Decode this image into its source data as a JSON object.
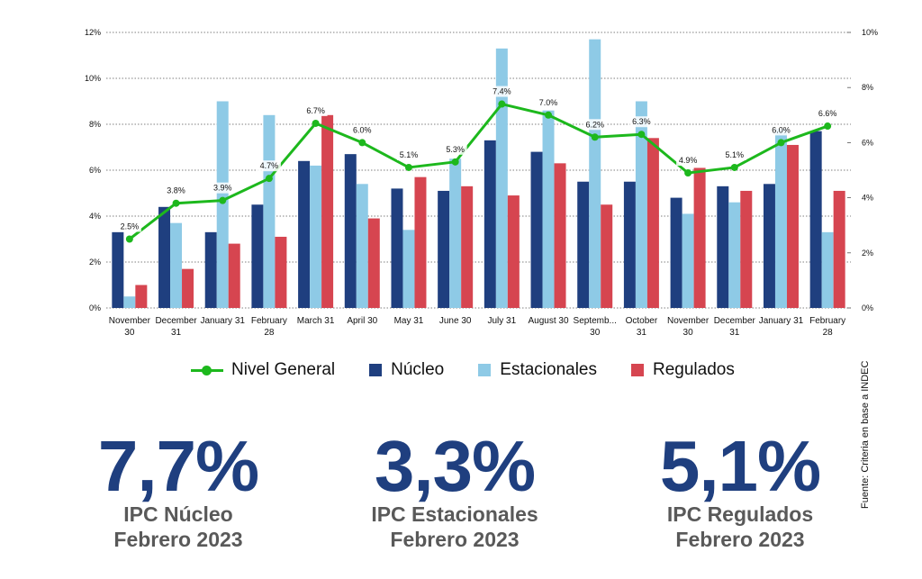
{
  "chart_data": {
    "type": "bar",
    "title": "",
    "categories": [
      [
        "November",
        "30"
      ],
      [
        "December",
        "31"
      ],
      [
        "January 31"
      ],
      [
        "February",
        "28"
      ],
      [
        "March 31"
      ],
      [
        "April 30"
      ],
      [
        "May 31"
      ],
      [
        "June 30"
      ],
      [
        "July 31"
      ],
      [
        "August 30"
      ],
      [
        "Septemb...",
        "30"
      ],
      [
        "October",
        "31"
      ],
      [
        "November",
        "30"
      ],
      [
        "December",
        "31"
      ],
      [
        "January 31"
      ],
      [
        "February",
        "28"
      ]
    ],
    "series": [
      {
        "name": "Núcleo",
        "kind": "bar",
        "axis": "left",
        "color": "#1f3f7f",
        "values": [
          3.3,
          4.4,
          3.3,
          4.5,
          6.4,
          6.7,
          5.2,
          5.1,
          7.3,
          6.8,
          5.5,
          5.5,
          4.8,
          5.3,
          5.4,
          7.7
        ]
      },
      {
        "name": "Estacionales",
        "kind": "bar",
        "axis": "left",
        "color": "#8ecae6",
        "values": [
          0.5,
          3.7,
          9.0,
          8.4,
          6.2,
          5.4,
          3.4,
          6.5,
          11.3,
          8.6,
          11.7,
          9.0,
          4.1,
          4.6,
          7.8,
          3.3
        ]
      },
      {
        "name": "Regulados",
        "kind": "bar",
        "axis": "left",
        "color": "#d64550",
        "values": [
          1.0,
          1.7,
          2.8,
          3.1,
          8.4,
          3.9,
          5.7,
          5.3,
          4.9,
          6.3,
          4.5,
          7.4,
          6.1,
          5.1,
          7.1,
          5.1
        ]
      },
      {
        "name": "Nivel General",
        "kind": "line",
        "axis": "right",
        "color": "#1db81d",
        "values": [
          2.5,
          3.8,
          3.9,
          4.7,
          6.7,
          6.0,
          5.1,
          5.3,
          7.4,
          7.0,
          6.2,
          6.3,
          4.9,
          5.1,
          6.0,
          6.6
        ],
        "labels": [
          "2.5%",
          "3.8%",
          "3.9%",
          "4.7%",
          "6.7%",
          "6.0%",
          "5.1%",
          "5.3%",
          "7.4%",
          "7.0%",
          "6.2%",
          "6.3%",
          "4.9%",
          "5.1%",
          "6.0%",
          "6.6%"
        ]
      }
    ],
    "y_left": {
      "range": [
        0,
        12
      ],
      "ticks": [
        0,
        2,
        4,
        6,
        8,
        10,
        12
      ],
      "tick_labels": [
        "0%",
        "2%",
        "4%",
        "6%",
        "8%",
        "10%",
        "12%"
      ]
    },
    "y_right": {
      "range": [
        0,
        10
      ],
      "ticks": [
        0,
        2,
        4,
        6,
        8,
        10
      ],
      "tick_labels": [
        "0%",
        "2%",
        "4%",
        "6%",
        "8%",
        "10%"
      ]
    },
    "grid": true,
    "legend_position": "bottom"
  },
  "legend": {
    "items": [
      {
        "label": "Nivel General",
        "color": "#1db81d"
      },
      {
        "label": "Núcleo",
        "color": "#1f3f7f"
      },
      {
        "label": "Estacionales",
        "color": "#8ecae6"
      },
      {
        "label": "Regulados",
        "color": "#d64550"
      }
    ]
  },
  "kpis": [
    {
      "value": "7,7%",
      "label": "IPC Núcleo",
      "period": "Febrero 2023",
      "color": "#1f3f7f"
    },
    {
      "value": "3,3%",
      "label": "IPC Estacionales",
      "period": "Febrero 2023",
      "color": "#1f3f7f"
    },
    {
      "value": "5,1%",
      "label": "IPC Regulados",
      "period": "Febrero 2023",
      "color": "#1f3f7f"
    }
  ],
  "source": "Fuente: Criteria en base a INDEC"
}
